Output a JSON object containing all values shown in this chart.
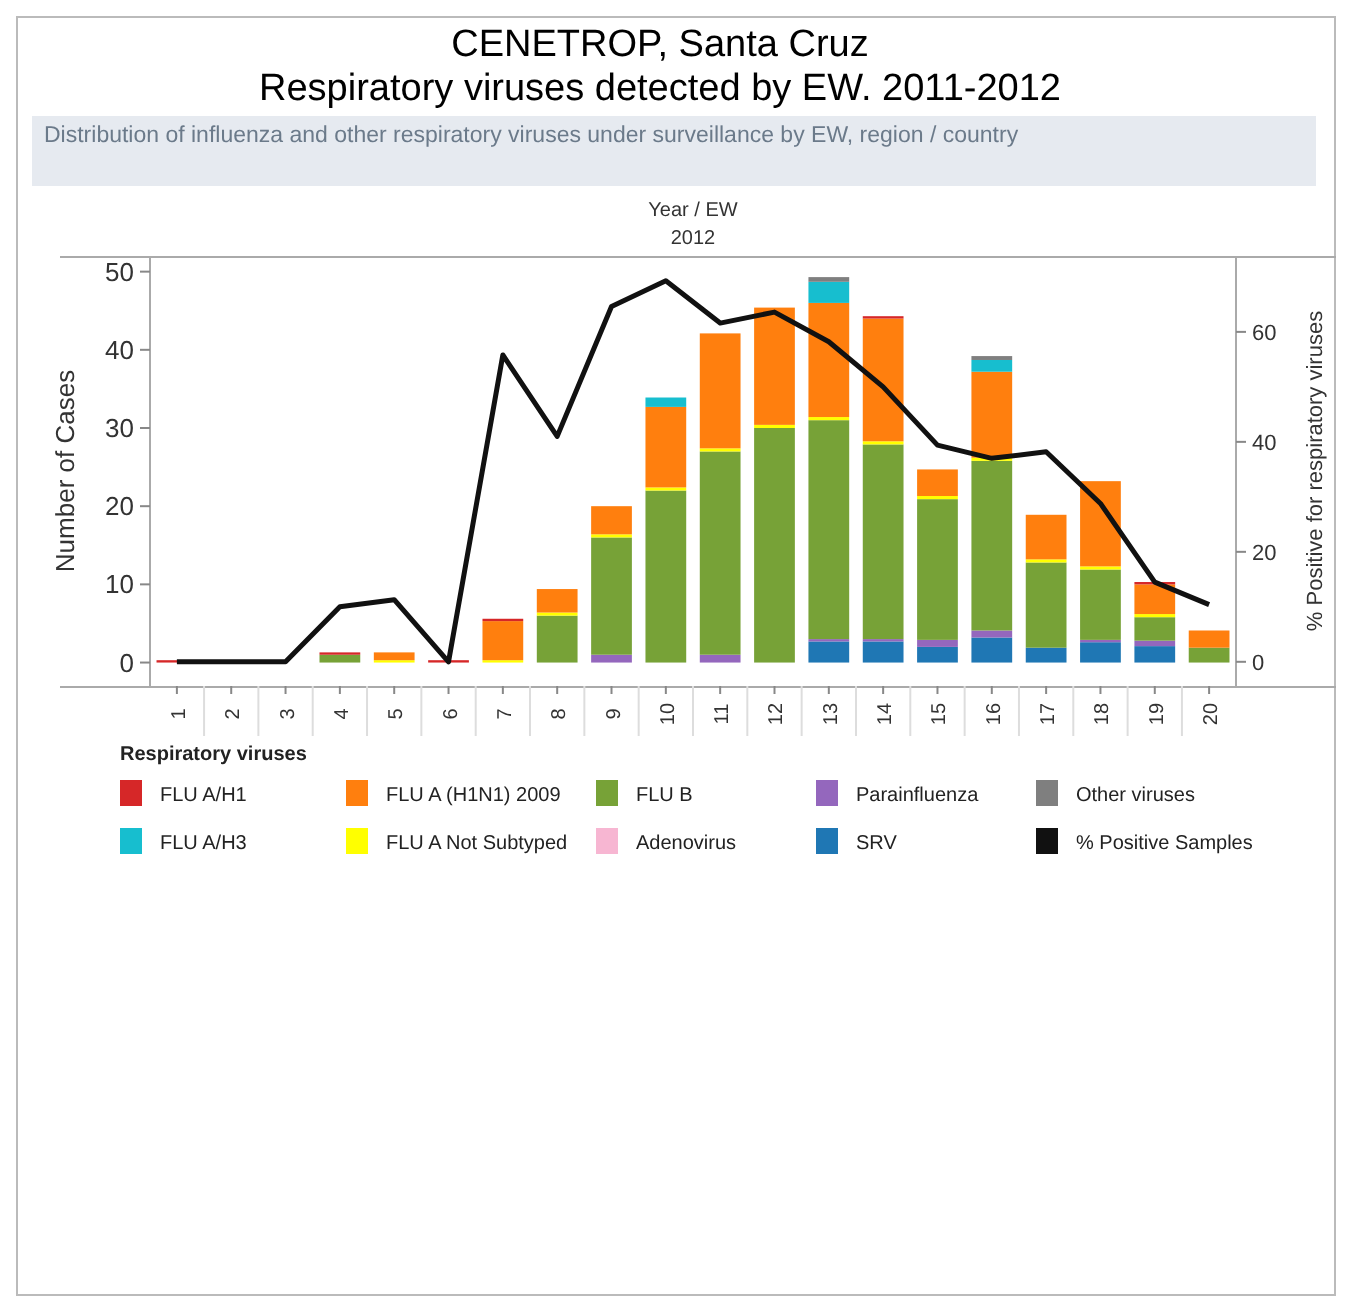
{
  "chart_data": {
    "type": "bar",
    "title": "CENETROP, Santa Cruz\nRespiratory viruses detected by EW. 2011-2012",
    "subtitle": "Distribution of influenza and other respiratory viruses under surveillance by EW, region / country",
    "xlabel": "Year / EW",
    "annotations": [
      "2012"
    ],
    "ylabel": "Number of Cases",
    "y2label": "% Positive for respiratory viruses",
    "legend_title": "Respiratory viruses",
    "categories": [
      "1",
      "2",
      "3",
      "4",
      "5",
      "6",
      "7",
      "8",
      "9",
      "10",
      "11",
      "12",
      "13",
      "14",
      "15",
      "16",
      "17",
      "18",
      "19",
      "20"
    ],
    "stacked": true,
    "series": [
      {
        "name": "SRV",
        "color": "#1f77b4",
        "values": [
          null,
          null,
          null,
          null,
          null,
          null,
          null,
          null,
          null,
          null,
          null,
          null,
          2.7,
          2.7,
          2,
          3.2,
          1.9,
          2.6,
          2.1,
          null
        ]
      },
      {
        "name": "Parainfluenza",
        "color": "#9467bd",
        "values": [
          null,
          null,
          null,
          null,
          null,
          null,
          null,
          null,
          1,
          null,
          1,
          null,
          0.3,
          0.3,
          0.9,
          0.9,
          null,
          0.3,
          0.7,
          null
        ]
      },
      {
        "name": "Adenovirus",
        "color": "#f7b6d2",
        "values": [
          null,
          null,
          null,
          null,
          null,
          null,
          null,
          null,
          null,
          null,
          null,
          null,
          null,
          null,
          null,
          null,
          null,
          null,
          null,
          null
        ]
      },
      {
        "name": "FLU B",
        "color": "#77a237",
        "values": [
          null,
          null,
          null,
          1,
          null,
          null,
          null,
          6,
          15,
          22,
          26,
          30,
          28,
          24.9,
          18,
          21.7,
          10.9,
          9,
          3,
          1.9
        ]
      },
      {
        "name": "FLU A Not Subtyped",
        "color": "#ffff00",
        "values": [
          null,
          null,
          null,
          null,
          0.3,
          null,
          0.3,
          0.4,
          0.4,
          0.4,
          0.4,
          0.4,
          0.4,
          0.4,
          0.4,
          0.4,
          0.4,
          0.4,
          0.4,
          null
        ]
      },
      {
        "name": "FLU A (H1N1) 2009",
        "color": "#ff7f0e",
        "values": [
          null,
          null,
          null,
          null,
          1,
          null,
          5,
          3,
          3.6,
          10.3,
          14.7,
          15,
          14.6,
          15.7,
          3.4,
          11,
          5.7,
          10.9,
          3.8,
          2.2
        ]
      },
      {
        "name": "FLU A/H3",
        "color": "#17becf",
        "values": [
          null,
          null,
          null,
          null,
          null,
          null,
          null,
          null,
          null,
          1.2,
          null,
          null,
          2.7,
          null,
          null,
          1.5,
          null,
          null,
          null,
          null
        ]
      },
      {
        "name": "Other viruses",
        "color": "#7f7f7f",
        "values": [
          null,
          null,
          null,
          null,
          null,
          null,
          null,
          null,
          null,
          null,
          null,
          null,
          0.6,
          null,
          null,
          0.5,
          null,
          null,
          null,
          null
        ]
      },
      {
        "name": "FLU A/H1",
        "color": "#d62728",
        "values": [
          0.3,
          null,
          null,
          0.3,
          null,
          0.3,
          0.3,
          null,
          null,
          null,
          null,
          null,
          null,
          0.3,
          null,
          null,
          null,
          null,
          0.3,
          null
        ]
      },
      {
        "name": "% Positive Samples",
        "type": "line",
        "axis": "y2",
        "color": "#111111",
        "values": [
          0,
          0,
          0,
          10,
          11.3,
          0,
          55.8,
          41,
          64.6,
          69.3,
          61.6,
          63.6,
          58.2,
          50,
          39.4,
          37,
          38.2,
          28.8,
          14.5,
          10.4
        ]
      }
    ],
    "ylim": [
      -3,
      52
    ],
    "yticks": [
      0,
      10,
      20,
      30,
      40,
      50
    ],
    "y2lim": [
      -4.4,
      73.8
    ],
    "y2ticks": [
      0,
      20,
      40,
      60
    ],
    "grid": false,
    "legend": "bottom",
    "marker": "none",
    "line_style": "solid"
  }
}
